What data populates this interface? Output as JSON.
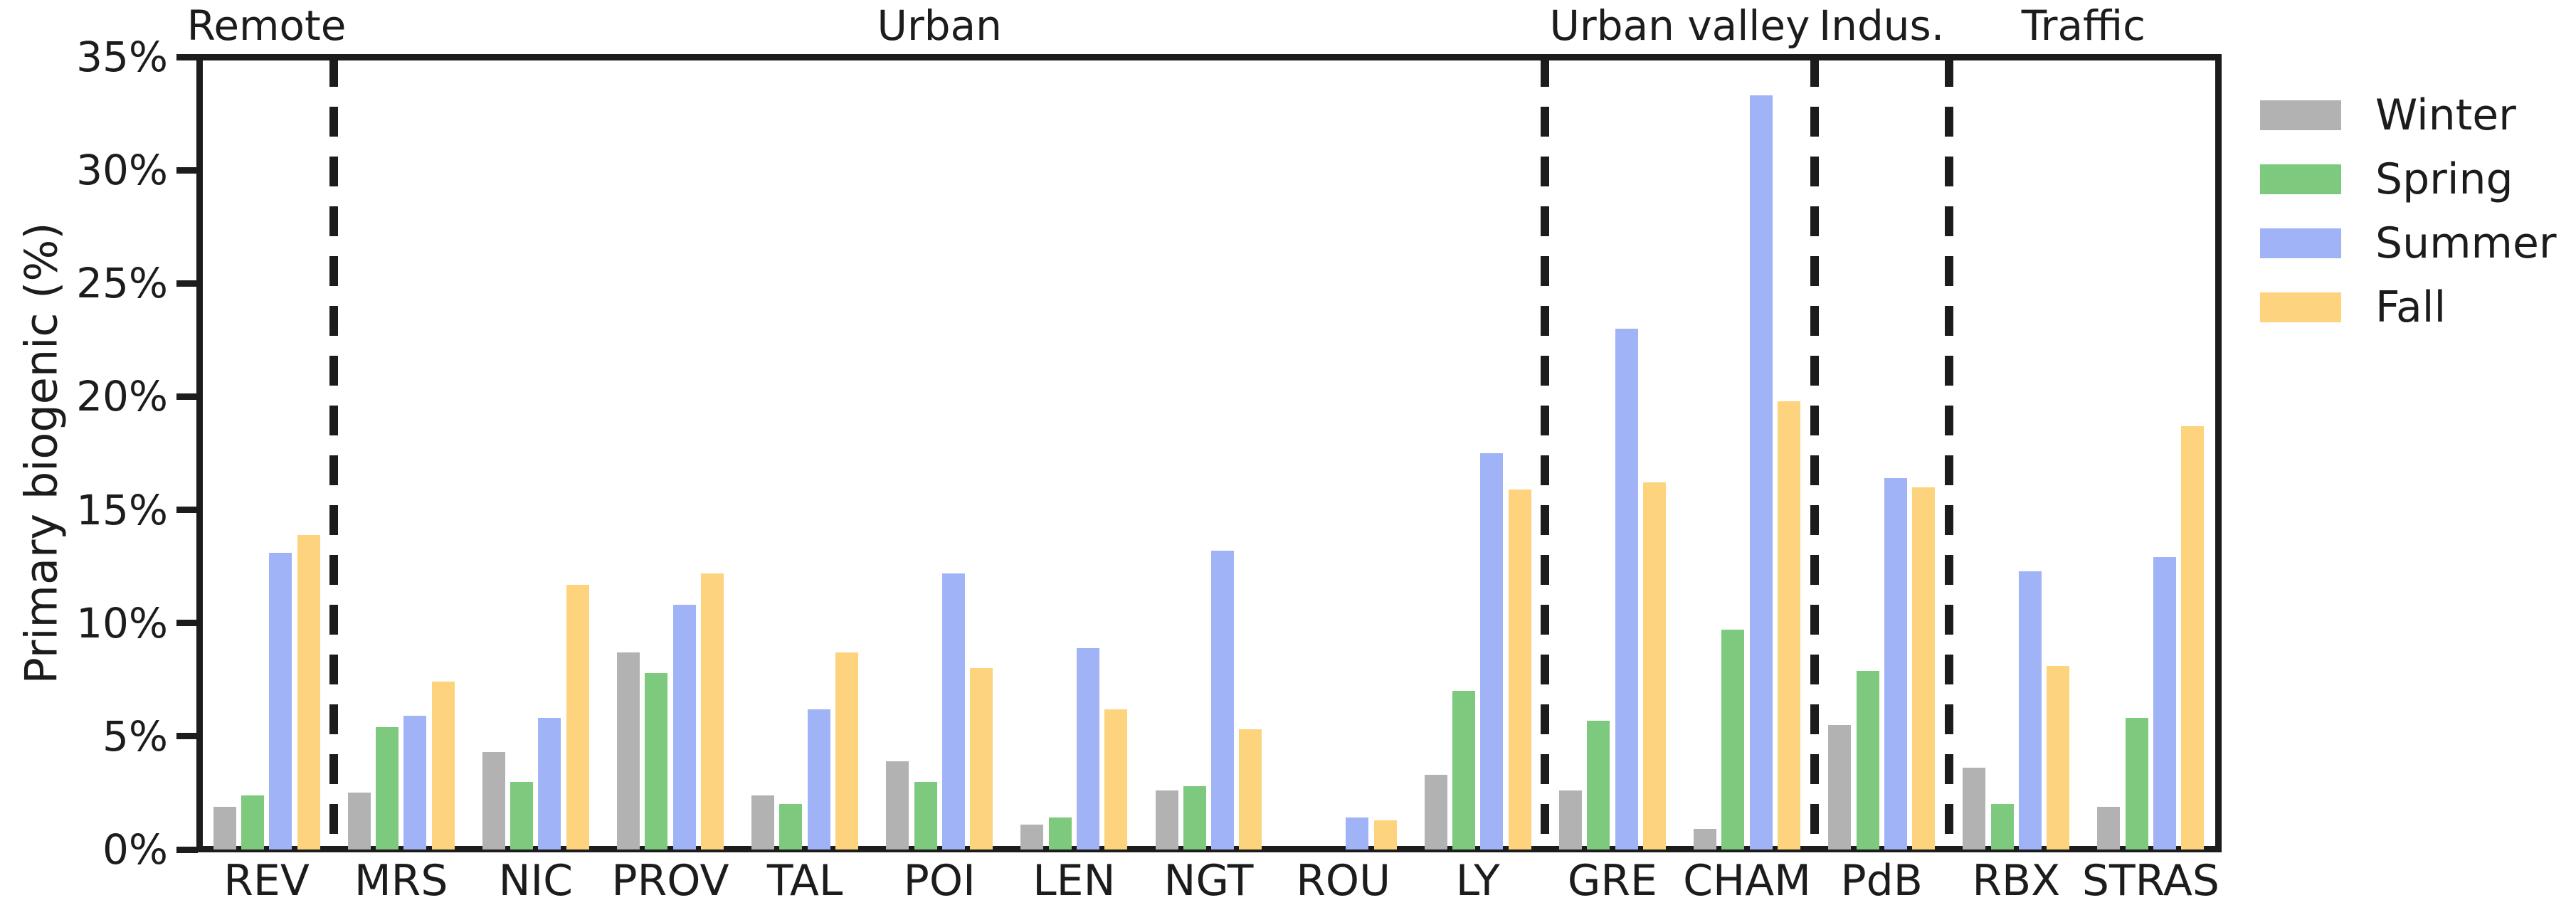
{
  "chart_data": {
    "type": "bar",
    "title": "",
    "ylabel": "Primary biogenic (%)",
    "ylim": [
      0,
      35
    ],
    "ytick_values": [
      0,
      5,
      10,
      15,
      20,
      25,
      30,
      35
    ],
    "ytick_labels": [
      "0%",
      "5%",
      "10%",
      "15%",
      "20%",
      "25%",
      "30%",
      "35%"
    ],
    "grid": false,
    "legend_position": "outside-upper-right",
    "categories": [
      "REV",
      "MRS",
      "NIC",
      "PROV",
      "TAL",
      "POI",
      "LEN",
      "NGT",
      "ROU",
      "LY",
      "GRE",
      "CHAM",
      "PdB",
      "RBX",
      "STRAS"
    ],
    "series": [
      {
        "name": "Winter",
        "color": "#b2b2b2",
        "values": [
          1.9,
          2.5,
          4.3,
          8.7,
          2.4,
          3.9,
          1.1,
          2.6,
          0,
          3.3,
          2.6,
          0.9,
          5.5,
          3.6,
          1.9
        ]
      },
      {
        "name": "Spring",
        "color": "#7dc97d",
        "values": [
          2.4,
          5.4,
          3.0,
          7.8,
          2.0,
          3.0,
          1.4,
          2.8,
          0,
          7.0,
          5.7,
          9.7,
          7.9,
          2.0,
          5.8
        ]
      },
      {
        "name": "Summer",
        "color": "#9fb3f6",
        "values": [
          13.1,
          5.9,
          5.8,
          10.8,
          6.2,
          12.2,
          8.9,
          13.2,
          1.4,
          17.5,
          23.0,
          33.3,
          16.4,
          12.3,
          12.9
        ]
      },
      {
        "name": "Fall",
        "color": "#fdd37e",
        "values": [
          13.9,
          7.4,
          11.7,
          12.2,
          8.7,
          8.0,
          6.2,
          5.3,
          1.3,
          15.9,
          16.2,
          19.8,
          16.0,
          8.1,
          18.7
        ]
      }
    ],
    "site_groups": [
      {
        "label": "Remote",
        "start": 0,
        "end": 1
      },
      {
        "label": "Urban",
        "start": 1,
        "end": 10
      },
      {
        "label": "Urban valley",
        "start": 10,
        "end": 12
      },
      {
        "label": "Indus.",
        "start": 12,
        "end": 13
      },
      {
        "label": "Traffic",
        "start": 13,
        "end": 15
      }
    ],
    "separator_boundaries": [
      1,
      10,
      12,
      13
    ],
    "axis_color": "#1c1c1c"
  }
}
